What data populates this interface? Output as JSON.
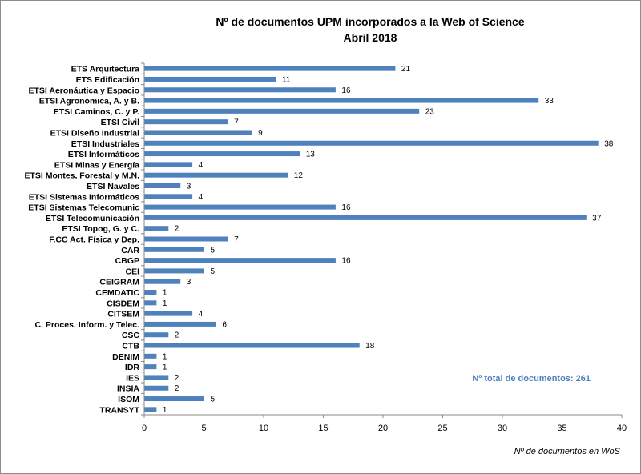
{
  "chart_data": {
    "type": "bar",
    "orientation": "horizontal",
    "title": "Nº de documentos UPM incorporados a la Web of Science",
    "subtitle": "Abril 2018",
    "xlabel": "Nº de documentos en WoS",
    "ylabel": "",
    "xlim": [
      0,
      40
    ],
    "xticks": [
      0,
      5,
      10,
      15,
      20,
      25,
      30,
      35,
      40
    ],
    "grid": false,
    "bar_color": "#4f81bd",
    "annotation": {
      "text": "Nº total de documentos:  261",
      "color": "#4f81bd"
    },
    "categories": [
      "ETS Arquitectura",
      "ETS Edificación",
      "ETSI Aeronáutica y Espacio",
      "ETSI Agronómica, A. y B.",
      "ETSI Caminos, C. y P.",
      "ETSI Civil",
      "ETSI Diseño Industrial",
      "ETSI Industriales",
      "ETSI Informáticos",
      "ETSI Minas y Energía",
      "ETSI Montes, Forestal y M.N.",
      "ETSI Navales",
      "ETSI Sistemas Informáticos",
      "ETSI Sistemas Telecomunic",
      "ETSI Telecomunicación",
      "ETSI Topog, G. y C.",
      "F.CC Act. Física y Dep.",
      "CAR",
      "CBGP",
      "CEI",
      "CEIGRAM",
      "CEMDATIC",
      "CISDEM",
      "CITSEM",
      "C. Proces. Inform. y Telec.",
      "CSC",
      "CTB",
      "DENIM",
      "IDR",
      "IES",
      "INSIA",
      "ISOM",
      "TRANSYT"
    ],
    "values": [
      21,
      11,
      16,
      33,
      23,
      7,
      9,
      38,
      13,
      4,
      12,
      3,
      4,
      16,
      37,
      2,
      7,
      5,
      16,
      5,
      3,
      1,
      1,
      4,
      6,
      2,
      18,
      1,
      1,
      2,
      2,
      5,
      1
    ]
  }
}
